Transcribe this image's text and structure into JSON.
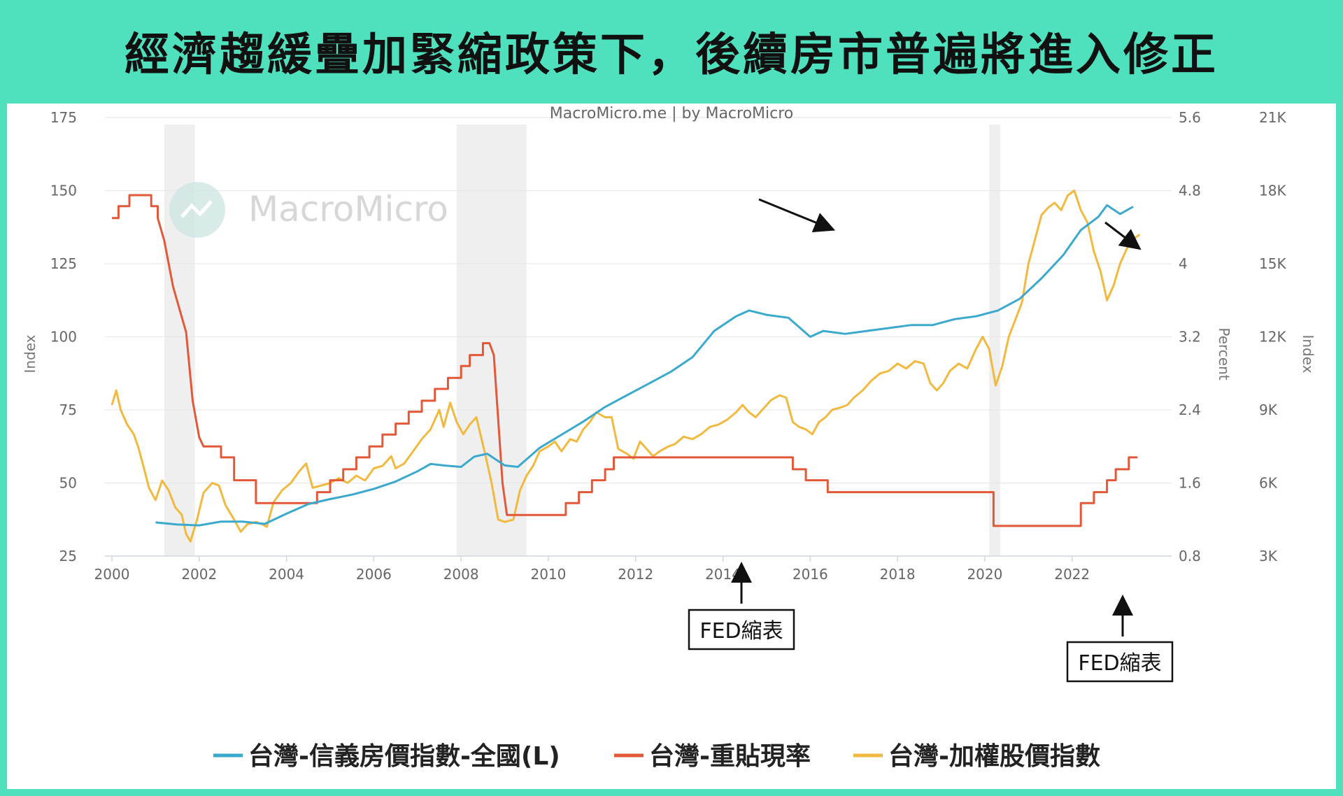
{
  "banner": {
    "title": "經濟趨緩疊加緊縮政策下，後續房市普遍將進入修正"
  },
  "chart_data": {
    "type": "line",
    "source": "MacroMicro.me | by MacroMicro",
    "watermark": "MacroMicro",
    "x_ticks": [
      "2000",
      "2002",
      "2004",
      "2006",
      "2008",
      "2010",
      "2012",
      "2014",
      "2016",
      "2018",
      "2020",
      "2022"
    ],
    "xlim": [
      2000,
      2023.8
    ],
    "y_left": {
      "label": "Index",
      "ticks": [
        "25",
        "50",
        "75",
        "100",
        "125",
        "150",
        "175"
      ],
      "range": [
        25,
        175
      ]
    },
    "y_right1": {
      "label": "Percent",
      "ticks": [
        "0.8",
        "1.6",
        "2.4",
        "3.2",
        "4",
        "4.8",
        "5.6"
      ],
      "range": [
        0.8,
        5.6
      ]
    },
    "y_right2": {
      "label": "Index",
      "ticks": [
        "3K",
        "6K",
        "9K",
        "12K",
        "15K",
        "18K",
        "21K"
      ],
      "range": [
        3000,
        21000
      ]
    },
    "recessions": [
      [
        2001.2,
        2001.9
      ],
      [
        2007.9,
        2009.5
      ],
      [
        2020.1,
        2020.35
      ]
    ],
    "series": [
      {
        "name": "台灣-信義房價指數-全國(L)",
        "axis": "left",
        "color": "#3aa9cd",
        "points": [
          [
            2001.0,
            36.5
          ],
          [
            2001.5,
            35.8
          ],
          [
            2002.0,
            35.5
          ],
          [
            2002.5,
            36.8
          ],
          [
            2003.0,
            36.8
          ],
          [
            2003.5,
            36.0
          ],
          [
            2004.0,
            39.5
          ],
          [
            2004.5,
            42.8
          ],
          [
            2005.0,
            44.5
          ],
          [
            2005.5,
            46.0
          ],
          [
            2006.0,
            48.0
          ],
          [
            2006.5,
            50.5
          ],
          [
            2007.0,
            54.0
          ],
          [
            2007.3,
            56.5
          ],
          [
            2007.6,
            56.0
          ],
          [
            2008.0,
            55.5
          ],
          [
            2008.3,
            59.0
          ],
          [
            2008.6,
            60.0
          ],
          [
            2009.0,
            56.0
          ],
          [
            2009.3,
            55.5
          ],
          [
            2009.8,
            62.0
          ],
          [
            2010.3,
            66.5
          ],
          [
            2010.8,
            71.0
          ],
          [
            2011.3,
            76.0
          ],
          [
            2011.8,
            80.0
          ],
          [
            2012.3,
            84.0
          ],
          [
            2012.8,
            88.0
          ],
          [
            2013.3,
            93.0
          ],
          [
            2013.8,
            102.0
          ],
          [
            2014.3,
            107.0
          ],
          [
            2014.6,
            109.0
          ],
          [
            2015.0,
            107.5
          ],
          [
            2015.5,
            106.5
          ],
          [
            2016.0,
            100.0
          ],
          [
            2016.3,
            102.0
          ],
          [
            2016.8,
            101.0
          ],
          [
            2017.3,
            102.0
          ],
          [
            2017.8,
            103.0
          ],
          [
            2018.3,
            104.0
          ],
          [
            2018.8,
            104.0
          ],
          [
            2019.3,
            106.0
          ],
          [
            2019.8,
            107.0
          ],
          [
            2020.3,
            109.0
          ],
          [
            2020.8,
            113.0
          ],
          [
            2021.3,
            120.0
          ],
          [
            2021.8,
            128.0
          ],
          [
            2022.2,
            136.5
          ],
          [
            2022.6,
            141.0
          ],
          [
            2022.8,
            145.0
          ],
          [
            2023.1,
            142.0
          ],
          [
            2023.4,
            144.5
          ]
        ]
      },
      {
        "name": "台灣-重貼現率",
        "axis": "right1",
        "color": "#e35838",
        "points": [
          [
            2000.0,
            4.5
          ],
          [
            2000.15,
            4.5
          ],
          [
            2000.15,
            4.63
          ],
          [
            2000.4,
            4.63
          ],
          [
            2000.4,
            4.75
          ],
          [
            2000.9,
            4.75
          ],
          [
            2000.9,
            4.63
          ],
          [
            2001.05,
            4.63
          ],
          [
            2001.05,
            4.5
          ],
          [
            2001.2,
            4.25
          ],
          [
            2001.4,
            3.75
          ],
          [
            2001.55,
            3.5
          ],
          [
            2001.7,
            3.25
          ],
          [
            2001.85,
            2.5
          ],
          [
            2002.0,
            2.1
          ],
          [
            2002.1,
            2.0
          ],
          [
            2002.5,
            2.0
          ],
          [
            2002.5,
            1.88
          ],
          [
            2002.8,
            1.88
          ],
          [
            2002.8,
            1.63
          ],
          [
            2003.3,
            1.63
          ],
          [
            2003.3,
            1.38
          ],
          [
            2004.7,
            1.38
          ],
          [
            2004.7,
            1.5
          ],
          [
            2005.0,
            1.5
          ],
          [
            2005.0,
            1.63
          ],
          [
            2005.3,
            1.63
          ],
          [
            2005.3,
            1.75
          ],
          [
            2005.6,
            1.75
          ],
          [
            2005.6,
            1.88
          ],
          [
            2005.9,
            1.88
          ],
          [
            2005.9,
            2.0
          ],
          [
            2006.2,
            2.0
          ],
          [
            2006.2,
            2.13
          ],
          [
            2006.5,
            2.13
          ],
          [
            2006.5,
            2.25
          ],
          [
            2006.8,
            2.25
          ],
          [
            2006.8,
            2.38
          ],
          [
            2007.1,
            2.38
          ],
          [
            2007.1,
            2.5
          ],
          [
            2007.4,
            2.5
          ],
          [
            2007.4,
            2.63
          ],
          [
            2007.7,
            2.63
          ],
          [
            2007.7,
            2.75
          ],
          [
            2008.0,
            2.75
          ],
          [
            2008.0,
            2.88
          ],
          [
            2008.2,
            2.88
          ],
          [
            2008.2,
            3.0
          ],
          [
            2008.5,
            3.0
          ],
          [
            2008.5,
            3.13
          ],
          [
            2008.65,
            3.13
          ],
          [
            2008.75,
            3.0
          ],
          [
            2008.85,
            2.3
          ],
          [
            2008.95,
            1.6
          ],
          [
            2009.05,
            1.25
          ],
          [
            2009.15,
            1.25
          ],
          [
            2010.4,
            1.25
          ],
          [
            2010.4,
            1.38
          ],
          [
            2010.7,
            1.38
          ],
          [
            2010.7,
            1.5
          ],
          [
            2011.0,
            1.5
          ],
          [
            2011.0,
            1.63
          ],
          [
            2011.3,
            1.63
          ],
          [
            2011.3,
            1.75
          ],
          [
            2011.5,
            1.75
          ],
          [
            2011.5,
            1.88
          ],
          [
            2015.6,
            1.88
          ],
          [
            2015.6,
            1.75
          ],
          [
            2015.9,
            1.75
          ],
          [
            2015.9,
            1.63
          ],
          [
            2016.4,
            1.63
          ],
          [
            2016.4,
            1.5
          ],
          [
            2020.2,
            1.5
          ],
          [
            2020.2,
            1.13
          ],
          [
            2022.2,
            1.13
          ],
          [
            2022.2,
            1.38
          ],
          [
            2022.5,
            1.38
          ],
          [
            2022.5,
            1.5
          ],
          [
            2022.8,
            1.5
          ],
          [
            2022.8,
            1.63
          ],
          [
            2023.0,
            1.63
          ],
          [
            2023.0,
            1.75
          ],
          [
            2023.3,
            1.75
          ],
          [
            2023.3,
            1.88
          ],
          [
            2023.5,
            1.88
          ]
        ]
      },
      {
        "name": "台灣-加權股價指數",
        "axis": "right2",
        "color": "#f2b940",
        "points": [
          [
            2000.0,
            9200
          ],
          [
            2000.1,
            9800
          ],
          [
            2000.2,
            9000
          ],
          [
            2000.35,
            8400
          ],
          [
            2000.5,
            8000
          ],
          [
            2000.6,
            7500
          ],
          [
            2000.75,
            6500
          ],
          [
            2000.85,
            5800
          ],
          [
            2001.0,
            5300
          ],
          [
            2001.15,
            6100
          ],
          [
            2001.3,
            5700
          ],
          [
            2001.45,
            5000
          ],
          [
            2001.6,
            4700
          ],
          [
            2001.7,
            3900
          ],
          [
            2001.8,
            3600
          ],
          [
            2001.95,
            4500
          ],
          [
            2002.1,
            5600
          ],
          [
            2002.3,
            6000
          ],
          [
            2002.45,
            5900
          ],
          [
            2002.6,
            5100
          ],
          [
            2002.8,
            4500
          ],
          [
            2002.95,
            4000
          ],
          [
            2003.1,
            4300
          ],
          [
            2003.3,
            4400
          ],
          [
            2003.45,
            4300
          ],
          [
            2003.55,
            4200
          ],
          [
            2003.7,
            5200
          ],
          [
            2003.9,
            5700
          ],
          [
            2004.1,
            6000
          ],
          [
            2004.3,
            6500
          ],
          [
            2004.45,
            6800
          ],
          [
            2004.6,
            5800
          ],
          [
            2004.8,
            5900
          ],
          [
            2005.0,
            6000
          ],
          [
            2005.2,
            6200
          ],
          [
            2005.4,
            6000
          ],
          [
            2005.6,
            6300
          ],
          [
            2005.8,
            6100
          ],
          [
            2006.0,
            6600
          ],
          [
            2006.2,
            6700
          ],
          [
            2006.4,
            7100
          ],
          [
            2006.5,
            6600
          ],
          [
            2006.7,
            6800
          ],
          [
            2006.9,
            7300
          ],
          [
            2007.1,
            7800
          ],
          [
            2007.3,
            8200
          ],
          [
            2007.5,
            9000
          ],
          [
            2007.6,
            8300
          ],
          [
            2007.75,
            9300
          ],
          [
            2007.9,
            8500
          ],
          [
            2008.05,
            8000
          ],
          [
            2008.2,
            8400
          ],
          [
            2008.35,
            8700
          ],
          [
            2008.55,
            7200
          ],
          [
            2008.7,
            6000
          ],
          [
            2008.85,
            4500
          ],
          [
            2009.0,
            4400
          ],
          [
            2009.2,
            4500
          ],
          [
            2009.35,
            5700
          ],
          [
            2009.5,
            6300
          ],
          [
            2009.65,
            6700
          ],
          [
            2009.8,
            7300
          ],
          [
            2010.0,
            7500
          ],
          [
            2010.15,
            7700
          ],
          [
            2010.3,
            7300
          ],
          [
            2010.5,
            7800
          ],
          [
            2010.65,
            7700
          ],
          [
            2010.8,
            8200
          ],
          [
            2010.95,
            8500
          ],
          [
            2011.1,
            8900
          ],
          [
            2011.3,
            8700
          ],
          [
            2011.45,
            8700
          ],
          [
            2011.6,
            7400
          ],
          [
            2011.8,
            7200
          ],
          [
            2011.95,
            7000
          ],
          [
            2012.1,
            7700
          ],
          [
            2012.25,
            7400
          ],
          [
            2012.4,
            7100
          ],
          [
            2012.55,
            7300
          ],
          [
            2012.75,
            7500
          ],
          [
            2012.9,
            7600
          ],
          [
            2013.1,
            7900
          ],
          [
            2013.3,
            7800
          ],
          [
            2013.5,
            8000
          ],
          [
            2013.7,
            8300
          ],
          [
            2013.9,
            8400
          ],
          [
            2014.1,
            8600
          ],
          [
            2014.3,
            8900
          ],
          [
            2014.45,
            9200
          ],
          [
            2014.6,
            8900
          ],
          [
            2014.75,
            8700
          ],
          [
            2014.9,
            9000
          ],
          [
            2015.1,
            9400
          ],
          [
            2015.3,
            9600
          ],
          [
            2015.45,
            9500
          ],
          [
            2015.6,
            8500
          ],
          [
            2015.75,
            8300
          ],
          [
            2015.9,
            8200
          ],
          [
            2016.05,
            8000
          ],
          [
            2016.2,
            8500
          ],
          [
            2016.35,
            8700
          ],
          [
            2016.5,
            9000
          ],
          [
            2016.7,
            9100
          ],
          [
            2016.85,
            9200
          ],
          [
            2017.0,
            9500
          ],
          [
            2017.2,
            9800
          ],
          [
            2017.4,
            10200
          ],
          [
            2017.6,
            10500
          ],
          [
            2017.8,
            10600
          ],
          [
            2018.0,
            10900
          ],
          [
            2018.2,
            10700
          ],
          [
            2018.4,
            11000
          ],
          [
            2018.6,
            10900
          ],
          [
            2018.75,
            10100
          ],
          [
            2018.9,
            9800
          ],
          [
            2019.05,
            10100
          ],
          [
            2019.2,
            10600
          ],
          [
            2019.4,
            10900
          ],
          [
            2019.6,
            10700
          ],
          [
            2019.8,
            11500
          ],
          [
            2019.95,
            12000
          ],
          [
            2020.1,
            11500
          ],
          [
            2020.25,
            10000
          ],
          [
            2020.4,
            10800
          ],
          [
            2020.55,
            12000
          ],
          [
            2020.7,
            12700
          ],
          [
            2020.85,
            13400
          ],
          [
            2021.0,
            15000
          ],
          [
            2021.15,
            16000
          ],
          [
            2021.3,
            17000
          ],
          [
            2021.45,
            17300
          ],
          [
            2021.6,
            17500
          ],
          [
            2021.75,
            17200
          ],
          [
            2021.9,
            17800
          ],
          [
            2022.05,
            18000
          ],
          [
            2022.2,
            17200
          ],
          [
            2022.35,
            16700
          ],
          [
            2022.5,
            15500
          ],
          [
            2022.65,
            14700
          ],
          [
            2022.8,
            13500
          ],
          [
            2022.95,
            14100
          ],
          [
            2023.1,
            15000
          ],
          [
            2023.25,
            15600
          ],
          [
            2023.4,
            16000
          ],
          [
            2023.55,
            16200
          ]
        ]
      }
    ],
    "annotations": [
      {
        "text": "FED縮表"
      },
      {
        "text": "FED縮表"
      }
    ]
  }
}
